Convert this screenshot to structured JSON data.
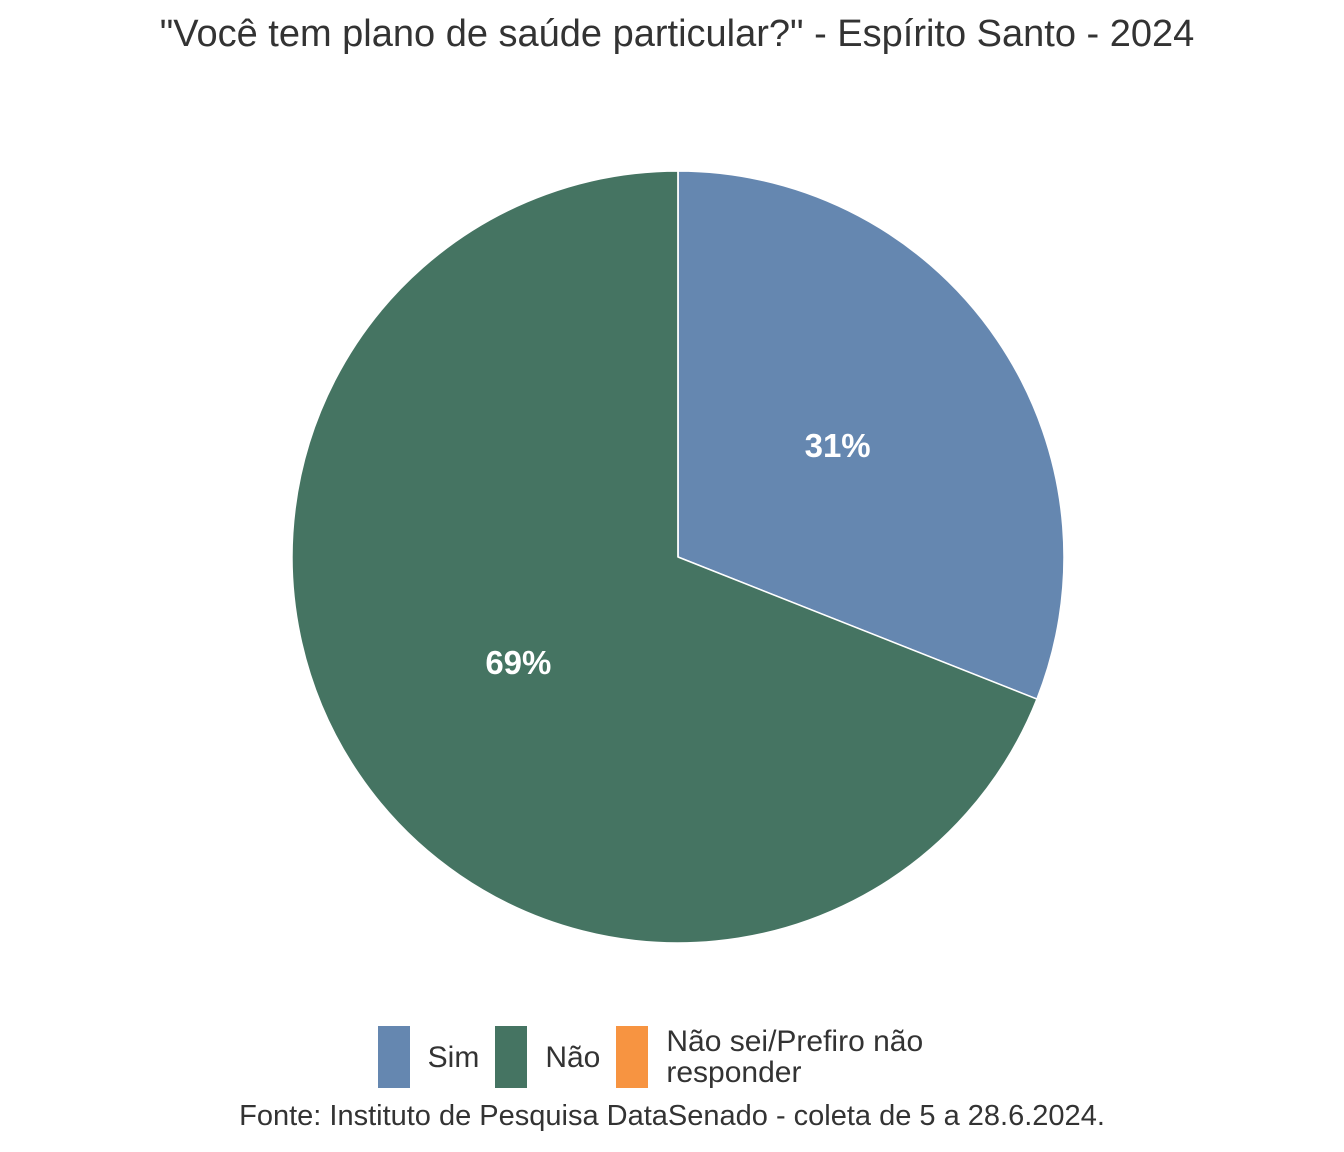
{
  "chart_data": {
    "type": "pie",
    "title": "\"Você tem plano de saúde particular?\" - Espírito Santo - 2024",
    "categories": [
      "Sim",
      "Não",
      "Não sei/Prefiro não responder"
    ],
    "values": [
      31,
      69,
      0
    ],
    "value_labels": [
      "31%",
      "69%",
      null
    ],
    "colors": [
      "#6587b0",
      "#457462",
      "#f79441"
    ],
    "caption": "Fonte: Instituto de Pesquisa DataSenado - coleta de 5 a 28.6.2024."
  }
}
